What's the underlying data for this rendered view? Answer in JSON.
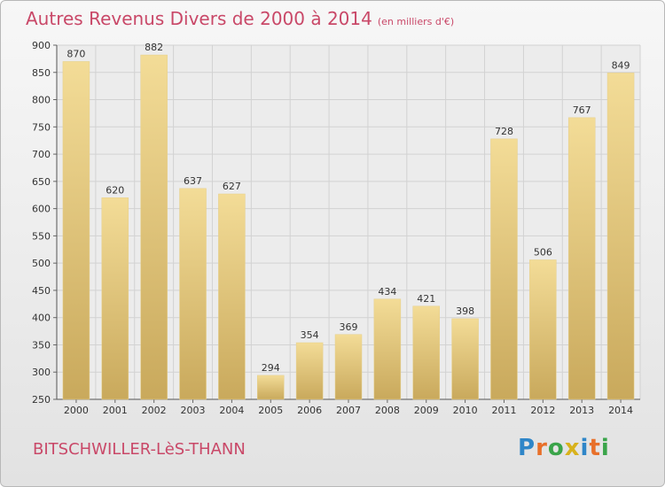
{
  "header": {
    "title": "Autres Revenus Divers de 2000 à 2014",
    "subtitle": "(en milliers d'€)"
  },
  "footer": {
    "commune": "BITSCHWILLER-LèS-THANN",
    "logo": "Proxiti",
    "logo_colors": [
      "#2f86c8",
      "#e8702a",
      "#3aa44a",
      "#d8b21c"
    ]
  },
  "chart_data": {
    "type": "bar",
    "title": "Autres Revenus Divers de 2000 à 2014",
    "subtitle": "(en milliers d'€)",
    "xlabel": "",
    "ylabel": "",
    "categories": [
      "2000",
      "2001",
      "2002",
      "2003",
      "2004",
      "2005",
      "2006",
      "2007",
      "2008",
      "2009",
      "2010",
      "2011",
      "2012",
      "2013",
      "2014"
    ],
    "values": [
      870,
      620,
      882,
      637,
      627,
      294,
      354,
      369,
      434,
      421,
      398,
      728,
      506,
      767,
      849
    ],
    "ylim": [
      250,
      900
    ],
    "yticks": [
      250,
      300,
      350,
      400,
      450,
      500,
      550,
      600,
      650,
      700,
      750,
      800,
      850,
      900
    ],
    "grid": true,
    "legend": "none",
    "bar_color_top": "#f3dc97",
    "bar_color_bottom": "#c9a95c",
    "title_color": "#c94868"
  }
}
